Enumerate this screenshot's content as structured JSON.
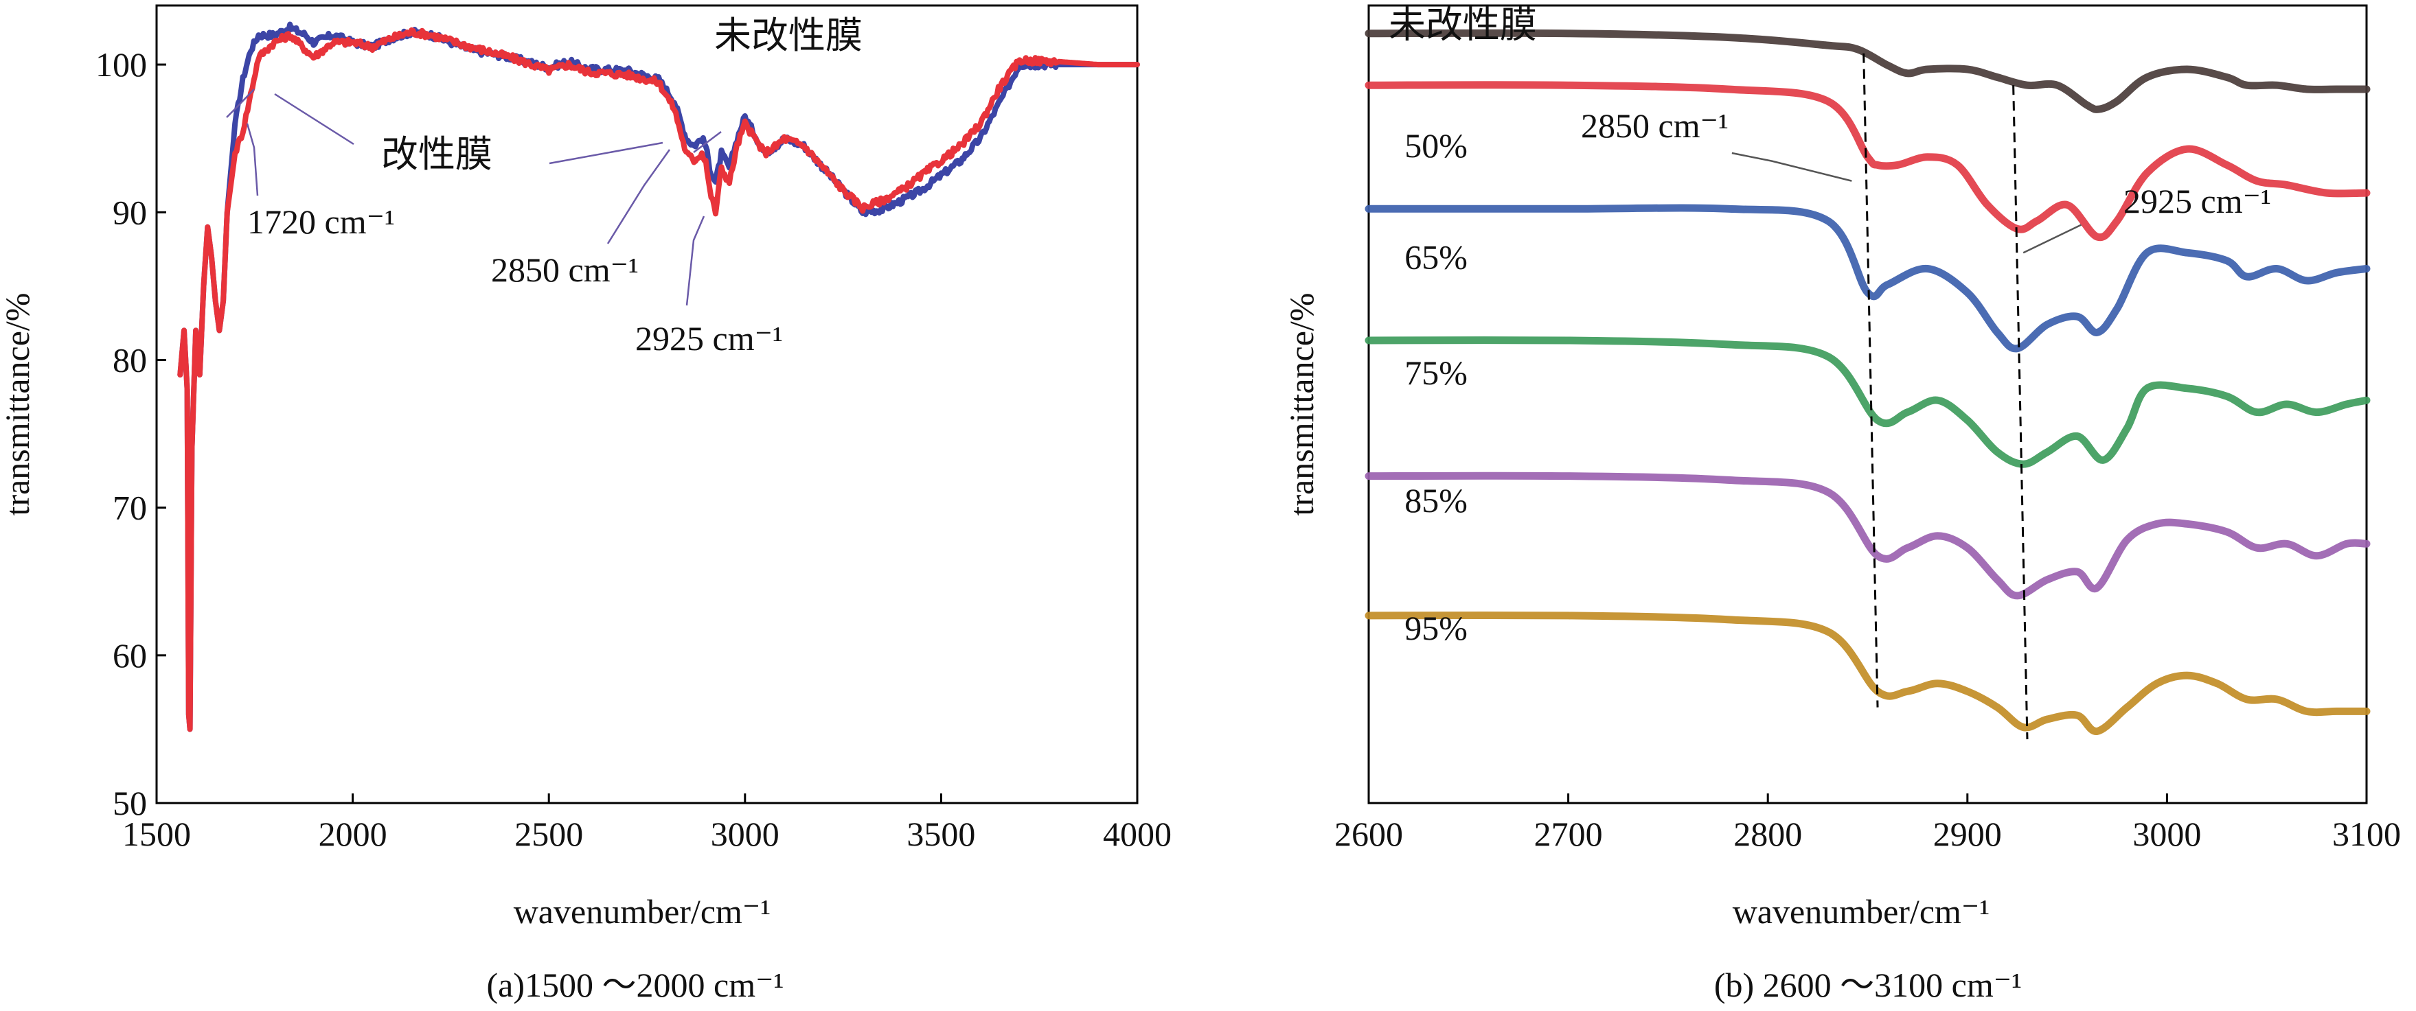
{
  "chart_data": [
    {
      "type": "line",
      "panel_caption": "(a)1500 ～2000 cm⁻¹",
      "xlabel": "wavenumber/cm⁻¹",
      "ylabel": "transmittance/%",
      "xlim": [
        1500,
        4000
      ],
      "ylim": [
        50,
        104
      ],
      "x_ticks": [
        1500,
        2000,
        2500,
        3000,
        3500,
        4000
      ],
      "x_tick_labels": [
        "1500",
        "2000",
        "2500",
        "3000",
        "3500",
        "4000"
      ],
      "y_ticks": [
        50,
        60,
        70,
        80,
        90,
        100
      ],
      "y_tick_labels": [
        "50",
        "60",
        "70",
        "80",
        "90",
        "100"
      ],
      "grid": false,
      "series": [
        {
          "name": "未改性膜",
          "color": "#3c45a6",
          "points": [
            [
              1560,
              79
            ],
            [
              1570,
              82
            ],
            [
              1578,
              78
            ],
            [
              1582,
              56
            ],
            [
              1585,
              55
            ],
            [
              1590,
              74
            ],
            [
              1600,
              82
            ],
            [
              1610,
              79
            ],
            [
              1620,
              85
            ],
            [
              1630,
              89
            ],
            [
              1640,
              87
            ],
            [
              1650,
              84
            ],
            [
              1660,
              82
            ],
            [
              1670,
              84
            ],
            [
              1680,
              90
            ],
            [
              1700,
              96
            ],
            [
              1720,
              99
            ],
            [
              1740,
              101
            ],
            [
              1760,
              102
            ],
            [
              1800,
              102
            ],
            [
              1840,
              102.5
            ],
            [
              1880,
              102
            ],
            [
              1900,
              101.5
            ],
            [
              1950,
              102
            ],
            [
              2000,
              101.5
            ],
            [
              2050,
              101.2
            ],
            [
              2100,
              101.8
            ],
            [
              2150,
              102.2
            ],
            [
              2200,
              102
            ],
            [
              2300,
              101
            ],
            [
              2400,
              100.5
            ],
            [
              2500,
              99.8
            ],
            [
              2550,
              100.2
            ],
            [
              2600,
              99.7
            ],
            [
              2700,
              99.6
            ],
            [
              2780,
              99
            ],
            [
              2820,
              97.5
            ],
            [
              2850,
              95
            ],
            [
              2870,
              94.5
            ],
            [
              2890,
              95
            ],
            [
              2900,
              94.5
            ],
            [
              2910,
              93
            ],
            [
              2925,
              92
            ],
            [
              2940,
              94
            ],
            [
              2960,
              93
            ],
            [
              2980,
              95
            ],
            [
              3000,
              96.5
            ],
            [
              3020,
              95.5
            ],
            [
              3050,
              94
            ],
            [
              3080,
              94.5
            ],
            [
              3100,
              95
            ],
            [
              3150,
              94.5
            ],
            [
              3200,
              93
            ],
            [
              3250,
              91.5
            ],
            [
              3300,
              90
            ],
            [
              3350,
              90.2
            ],
            [
              3400,
              90.8
            ],
            [
              3450,
              91.5
            ],
            [
              3500,
              92.5
            ],
            [
              3550,
              93.5
            ],
            [
              3600,
              95
            ],
            [
              3650,
              97.5
            ],
            [
              3700,
              100
            ],
            [
              3800,
              100
            ],
            [
              3900,
              100
            ],
            [
              4000,
              100
            ]
          ]
        },
        {
          "name": "改性膜",
          "color": "#e8333a",
          "points": [
            [
              1560,
              79
            ],
            [
              1570,
              82
            ],
            [
              1578,
              78
            ],
            [
              1582,
              56
            ],
            [
              1585,
              55
            ],
            [
              1590,
              74
            ],
            [
              1600,
              82
            ],
            [
              1610,
              79
            ],
            [
              1620,
              85
            ],
            [
              1630,
              89
            ],
            [
              1640,
              87
            ],
            [
              1650,
              84
            ],
            [
              1660,
              82
            ],
            [
              1670,
              84
            ],
            [
              1680,
              90
            ],
            [
              1700,
              94
            ],
            [
              1720,
              95.5
            ],
            [
              1740,
              98
            ],
            [
              1760,
              100.5
            ],
            [
              1800,
              101.5
            ],
            [
              1840,
              102
            ],
            [
              1880,
              101
            ],
            [
              1900,
              100.5
            ],
            [
              1950,
              101.5
            ],
            [
              2000,
              101.5
            ],
            [
              2050,
              101.2
            ],
            [
              2100,
              101.8
            ],
            [
              2150,
              102.2
            ],
            [
              2200,
              102
            ],
            [
              2300,
              101.2
            ],
            [
              2400,
              100.5
            ],
            [
              2500,
              99.6
            ],
            [
              2550,
              100
            ],
            [
              2600,
              99.5
            ],
            [
              2700,
              99.3
            ],
            [
              2780,
              98.8
            ],
            [
              2820,
              97
            ],
            [
              2850,
              94
            ],
            [
              2870,
              93.5
            ],
            [
              2890,
              94
            ],
            [
              2900,
              93.5
            ],
            [
              2910,
              91.5
            ],
            [
              2925,
              90
            ],
            [
              2940,
              93
            ],
            [
              2960,
              92
            ],
            [
              2980,
              94.5
            ],
            [
              3000,
              96
            ],
            [
              3020,
              95.2
            ],
            [
              3050,
              94
            ],
            [
              3080,
              94.5
            ],
            [
              3100,
              95
            ],
            [
              3150,
              94.5
            ],
            [
              3200,
              93
            ],
            [
              3250,
              91.5
            ],
            [
              3300,
              90.3
            ],
            [
              3350,
              90.8
            ],
            [
              3400,
              91.5
            ],
            [
              3450,
              92.5
            ],
            [
              3500,
              93.5
            ],
            [
              3550,
              94.5
            ],
            [
              3600,
              96
            ],
            [
              3650,
              98.5
            ],
            [
              3700,
              100.3
            ],
            [
              3800,
              100.2
            ],
            [
              3900,
              100
            ],
            [
              4000,
              100
            ]
          ]
        }
      ],
      "annotations": [
        {
          "text": "未改性膜",
          "x": 2840,
          "y": 101.5
        },
        {
          "text": "改性膜",
          "x": 2200,
          "y": 95
        },
        {
          "text": "1720 cm⁻¹",
          "x": 1750,
          "y": 90
        },
        {
          "text": "2850 cm⁻¹",
          "x": 2680,
          "y": 86
        },
        {
          "text": "2925 cm⁻¹",
          "x": 2880,
          "y": 82
        }
      ]
    },
    {
      "type": "line",
      "panel_caption": "(b) 2600 ～3100 cm⁻¹",
      "xlabel": "wavenumber/cm⁻¹",
      "ylabel": "transmittance/%",
      "xlim": [
        2600,
        3100
      ],
      "ylim": [
        0,
        100
      ],
      "x_ticks": [
        2600,
        2700,
        2800,
        2900,
        3000,
        3100
      ],
      "x_tick_labels": [
        "2600",
        "2700",
        "2800",
        "2900",
        "3000",
        "3100"
      ],
      "y_ticks": [],
      "grid": false,
      "series": [
        {
          "name": "未改性膜",
          "color": "#4a3c3a",
          "label_pos": [
            2610,
            96
          ]
        },
        {
          "name": "50%",
          "color": "#e23b45",
          "label_pos": [
            2618,
            81
          ]
        },
        {
          "name": "65%",
          "color": "#3c5fad",
          "label_pos": [
            2618,
            67
          ]
        },
        {
          "name": "75%",
          "color": "#3e9c5c",
          "label_pos": [
            2618,
            52.5
          ]
        },
        {
          "name": "85%",
          "color": "#9b62b0",
          "label_pos": [
            2618,
            36.5
          ]
        },
        {
          "name": "95%",
          "color": "#c28d26",
          "label_pos": [
            2618,
            20.5
          ]
        }
      ],
      "annotations": [
        {
          "text": "2850 cm⁻¹",
          "x": 2790,
          "y": 83
        },
        {
          "text": "2925 cm⁻¹",
          "x": 2960,
          "y": 74
        }
      ]
    }
  ]
}
